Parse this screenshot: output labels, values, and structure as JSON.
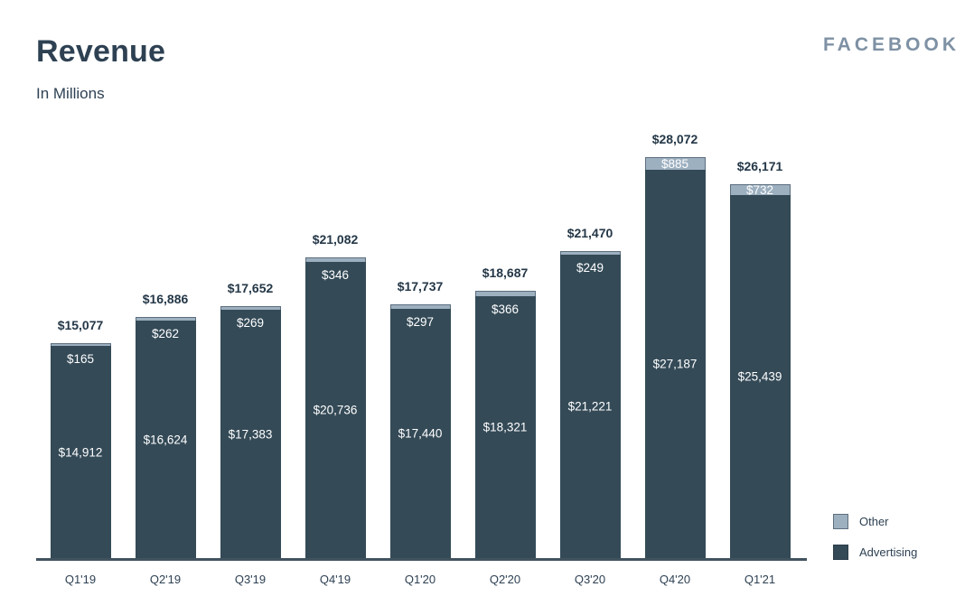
{
  "header": {
    "title": "Revenue",
    "subtitle": "In Millions",
    "brand": "FACEBOOK"
  },
  "colors": {
    "advertising": "#344A57",
    "other": "#9DB0C0",
    "other_border": "#5C6E7E",
    "axis": "#41535F",
    "text_dark": "#2E4153",
    "total_label": "#243747",
    "brand": "#7E91A4",
    "bar_value_label": "#FFFFFF"
  },
  "chart_data": {
    "type": "bar",
    "stacked": true,
    "title": "Revenue",
    "subtitle": "In Millions",
    "categories": [
      "Q1'19",
      "Q2'19",
      "Q3'19",
      "Q4'19",
      "Q1'20",
      "Q2'20",
      "Q3'20",
      "Q4'20",
      "Q1'21"
    ],
    "series": [
      {
        "name": "Advertising",
        "color": "#344A57",
        "values": [
          14912,
          16624,
          17383,
          20736,
          17440,
          18321,
          21221,
          27187,
          25439
        ]
      },
      {
        "name": "Other",
        "color": "#9DB0C0",
        "values": [
          165,
          262,
          269,
          346,
          297,
          366,
          249,
          885,
          732
        ]
      }
    ],
    "totals": [
      15077,
      16886,
      17652,
      21082,
      17737,
      18687,
      21470,
      28072,
      26171
    ],
    "xlabel": "",
    "ylabel": "",
    "ylim": [
      0,
      28072
    ],
    "grid": false,
    "legend_position": "bottom-right",
    "value_labels": "all-segments-and-totals"
  },
  "bars": [
    {
      "x_label": "Q1'19",
      "total_label": "$15,077",
      "other_label": "$165",
      "advertising_label": "$14,912"
    },
    {
      "x_label": "Q2'19",
      "total_label": "$16,886",
      "other_label": "$262",
      "advertising_label": "$16,624"
    },
    {
      "x_label": "Q3'19",
      "total_label": "$17,652",
      "other_label": "$269",
      "advertising_label": "$17,383"
    },
    {
      "x_label": "Q4'19",
      "total_label": "$21,082",
      "other_label": "$346",
      "advertising_label": "$20,736"
    },
    {
      "x_label": "Q1'20",
      "total_label": "$17,737",
      "other_label": "$297",
      "advertising_label": "$17,440"
    },
    {
      "x_label": "Q2'20",
      "total_label": "$18,687",
      "other_label": "$366",
      "advertising_label": "$18,321"
    },
    {
      "x_label": "Q3'20",
      "total_label": "$21,470",
      "other_label": "$249",
      "advertising_label": "$21,221"
    },
    {
      "x_label": "Q4'20",
      "total_label": "$28,072",
      "other_label": "$885",
      "advertising_label": "$27,187"
    },
    {
      "x_label": "Q1'21",
      "total_label": "$26,171",
      "other_label": "$732",
      "advertising_label": "$25,439"
    }
  ],
  "legend": [
    {
      "label": "Other",
      "color": "#9DB0C0"
    },
    {
      "label": "Advertising",
      "color": "#344A57"
    }
  ]
}
